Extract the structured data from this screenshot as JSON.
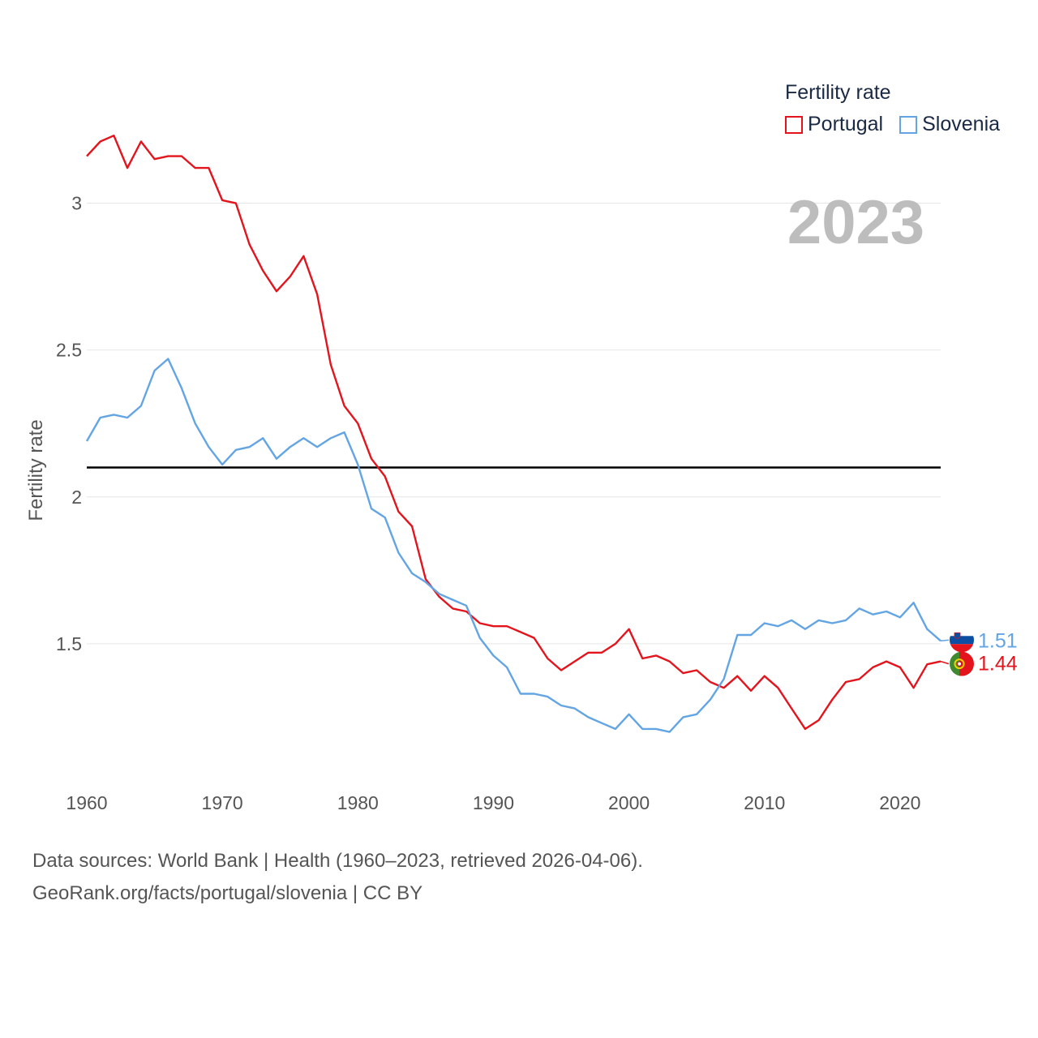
{
  "chart_data": {
    "type": "line",
    "title": "Fertility rate",
    "year_label": "2023",
    "ylabel": "Fertility rate",
    "xlabel": "",
    "xlim": [
      1960,
      2023
    ],
    "ylim": [
      1.0,
      3.25
    ],
    "y_ticks": [
      {
        "value": 1.5,
        "label": "1.5"
      },
      {
        "value": 2,
        "label": "2"
      },
      {
        "value": 2.5,
        "label": "2.5"
      },
      {
        "value": 3,
        "label": "3"
      }
    ],
    "x_ticks": [
      {
        "value": 1960,
        "label": "1960"
      },
      {
        "value": 1970,
        "label": "1970"
      },
      {
        "value": 1980,
        "label": "1980"
      },
      {
        "value": 1990,
        "label": "1990"
      },
      {
        "value": 2000,
        "label": "2000"
      },
      {
        "value": 2010,
        "label": "2010"
      },
      {
        "value": 2020,
        "label": "2020"
      }
    ],
    "reference_line": {
      "value": 2.1
    },
    "x": [
      1960,
      1961,
      1962,
      1963,
      1964,
      1965,
      1966,
      1967,
      1968,
      1969,
      1970,
      1971,
      1972,
      1973,
      1974,
      1975,
      1976,
      1977,
      1978,
      1979,
      1980,
      1981,
      1982,
      1983,
      1984,
      1985,
      1986,
      1987,
      1988,
      1989,
      1990,
      1991,
      1992,
      1993,
      1994,
      1995,
      1996,
      1997,
      1998,
      1999,
      2000,
      2001,
      2002,
      2003,
      2004,
      2005,
      2006,
      2007,
      2008,
      2009,
      2010,
      2011,
      2012,
      2013,
      2014,
      2015,
      2016,
      2017,
      2018,
      2019,
      2020,
      2021,
      2022,
      2023
    ],
    "series": [
      {
        "name": "Portugal",
        "color": "#e3141c",
        "end_label": "1.44",
        "values": [
          3.16,
          3.21,
          3.23,
          3.12,
          3.21,
          3.15,
          3.16,
          3.16,
          3.12,
          3.12,
          3.01,
          3.0,
          2.86,
          2.77,
          2.7,
          2.75,
          2.82,
          2.69,
          2.45,
          2.31,
          2.25,
          2.13,
          2.07,
          1.95,
          1.9,
          1.72,
          1.66,
          1.62,
          1.61,
          1.57,
          1.56,
          1.56,
          1.54,
          1.52,
          1.45,
          1.41,
          1.44,
          1.47,
          1.47,
          1.5,
          1.55,
          1.45,
          1.46,
          1.44,
          1.4,
          1.41,
          1.37,
          1.35,
          1.39,
          1.34,
          1.39,
          1.35,
          1.28,
          1.21,
          1.24,
          1.31,
          1.37,
          1.38,
          1.42,
          1.44,
          1.42,
          1.35,
          1.43,
          1.44
        ]
      },
      {
        "name": "Slovenia",
        "color": "#63a5e4",
        "end_label": "1.51",
        "values": [
          2.19,
          2.27,
          2.28,
          2.27,
          2.31,
          2.43,
          2.47,
          2.37,
          2.25,
          2.17,
          2.11,
          2.16,
          2.17,
          2.2,
          2.13,
          2.17,
          2.2,
          2.17,
          2.2,
          2.22,
          2.11,
          1.96,
          1.93,
          1.81,
          1.74,
          1.71,
          1.67,
          1.65,
          1.63,
          1.52,
          1.46,
          1.42,
          1.33,
          1.33,
          1.32,
          1.29,
          1.28,
          1.25,
          1.23,
          1.21,
          1.26,
          1.21,
          1.21,
          1.2,
          1.25,
          1.26,
          1.31,
          1.38,
          1.53,
          1.53,
          1.57,
          1.56,
          1.58,
          1.55,
          1.58,
          1.57,
          1.58,
          1.62,
          1.6,
          1.61,
          1.59,
          1.64,
          1.55,
          1.51
        ]
      }
    ]
  },
  "source": {
    "line1": "Data sources: World Bank | Health (1960–2023, retrieved 2026-04-06).",
    "line2": "GeoRank.org/facts/portugal/slovenia | CC BY"
  }
}
